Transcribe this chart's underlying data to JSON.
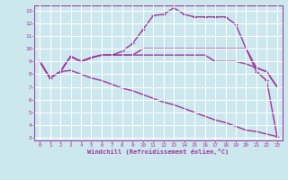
{
  "xlabel": "Windchill (Refroidissement éolien,°C)",
  "background_color": "#cce8ee",
  "grid_color": "#ffffff",
  "line_color": "#993399",
  "xlim": [
    -0.5,
    23.5
  ],
  "ylim": [
    2.8,
    13.4
  ],
  "yticks": [
    3,
    4,
    5,
    6,
    7,
    8,
    9,
    10,
    11,
    12,
    13
  ],
  "xticks": [
    0,
    1,
    2,
    3,
    4,
    5,
    6,
    7,
    8,
    9,
    10,
    11,
    12,
    13,
    14,
    15,
    16,
    17,
    18,
    19,
    20,
    21,
    22,
    23
  ],
  "series": [
    {
      "x": [
        0,
        1,
        2,
        3,
        4,
        5,
        6,
        7,
        8,
        9,
        10,
        11,
        12,
        13,
        14,
        15,
        16,
        17,
        18,
        19,
        20,
        21,
        22,
        23
      ],
      "y": [
        9.0,
        7.7,
        8.2,
        8.3,
        8.0,
        7.7,
        7.5,
        7.2,
        6.9,
        6.7,
        6.4,
        6.1,
        5.8,
        5.6,
        5.3,
        5.0,
        4.7,
        4.4,
        4.2,
        3.9,
        3.6,
        3.5,
        3.3,
        3.1
      ],
      "marker": null,
      "lw": 1.0
    },
    {
      "x": [
        0,
        1,
        2,
        3,
        4,
        5,
        6,
        7,
        8,
        9,
        10,
        11,
        12,
        13,
        14,
        15,
        16,
        17,
        18,
        19,
        20,
        21,
        22,
        23
      ],
      "y": [
        9.0,
        7.7,
        8.2,
        9.4,
        9.0,
        9.3,
        9.5,
        9.5,
        9.5,
        9.5,
        9.5,
        9.5,
        9.5,
        9.5,
        9.5,
        9.5,
        9.5,
        9.0,
        9.0,
        9.0,
        8.8,
        8.5,
        8.2,
        7.0
      ],
      "marker": null,
      "lw": 1.0
    },
    {
      "x": [
        0,
        1,
        2,
        3,
        4,
        5,
        6,
        7,
        8,
        9,
        10,
        11,
        12,
        13,
        14,
        15,
        16,
        17,
        18,
        19,
        20,
        21,
        22,
        23
      ],
      "y": [
        9.0,
        7.7,
        8.2,
        9.4,
        9.0,
        9.3,
        9.5,
        9.5,
        9.5,
        9.5,
        10.0,
        10.0,
        10.0,
        10.0,
        10.0,
        10.0,
        10.0,
        10.0,
        10.0,
        10.0,
        10.0,
        8.5,
        8.2,
        7.0
      ],
      "marker": null,
      "lw": 1.0
    },
    {
      "x": [
        0,
        1,
        2,
        3,
        4,
        5,
        6,
        7,
        8,
        9,
        10,
        11,
        12,
        13,
        14,
        15,
        16,
        17,
        18,
        19,
        20,
        21,
        22,
        23
      ],
      "y": [
        9.0,
        7.7,
        8.2,
        9.4,
        9.0,
        9.3,
        9.5,
        9.5,
        9.8,
        10.4,
        11.5,
        12.6,
        12.7,
        13.2,
        12.7,
        12.5,
        12.5,
        12.5,
        12.5,
        11.9,
        10.0,
        8.2,
        7.5,
        3.1
      ],
      "marker": "+",
      "ms": 3,
      "lw": 1.0
    }
  ]
}
